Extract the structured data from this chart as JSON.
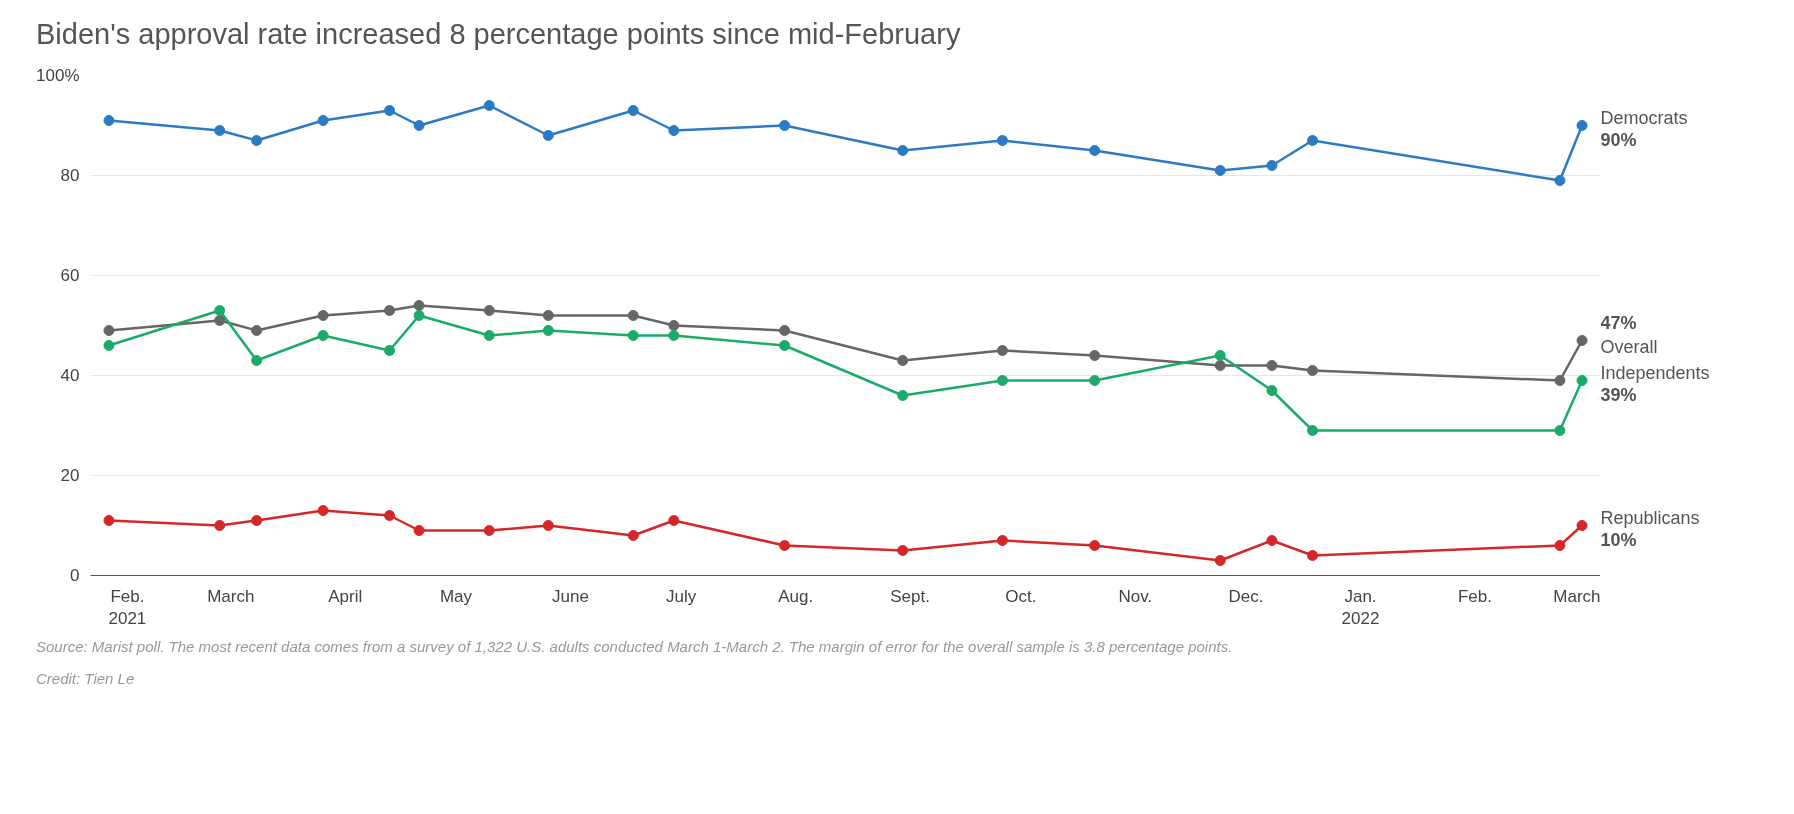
{
  "chart_data": {
    "type": "line",
    "title": "Biden's approval rate increased 8 percentage points since mid-February",
    "x": [
      "2021-01-27",
      "2021-02-26",
      "2021-03-08",
      "2021-03-26",
      "2021-04-13",
      "2021-04-21",
      "2021-05-10",
      "2021-05-26",
      "2021-06-18",
      "2021-06-29",
      "2021-07-29",
      "2021-08-30",
      "2021-09-26",
      "2021-10-21",
      "2021-11-24",
      "2021-12-08",
      "2021-12-19",
      "2022-02-24",
      "2022-03-02"
    ],
    "series": [
      {
        "name": "Democrats",
        "color": "#2a7bc3",
        "values": [
          91,
          89,
          87,
          91,
          93,
          90,
          94,
          88,
          93,
          89,
          90,
          85,
          87,
          85,
          81,
          82,
          87,
          79,
          90
        ],
        "value_labels": [
          null,
          null,
          null,
          null,
          null,
          null,
          null,
          null,
          null,
          null,
          null,
          null,
          null,
          null,
          null,
          null,
          null,
          null,
          "90%"
        ]
      },
      {
        "name": "Overall",
        "color": "#666666",
        "values": [
          49,
          51,
          49,
          52,
          53,
          54,
          53,
          52,
          52,
          50,
          49,
          43,
          45,
          44,
          42,
          42,
          41,
          39,
          47
        ],
        "value_labels": [
          null,
          null,
          null,
          null,
          null,
          null,
          null,
          null,
          null,
          null,
          null,
          null,
          null,
          null,
          null,
          null,
          null,
          null,
          "47%"
        ]
      },
      {
        "name": "Independents",
        "color": "#1aab6b",
        "values": [
          46,
          53,
          43,
          48,
          45,
          52,
          48,
          49,
          48,
          48,
          46,
          36,
          39,
          39,
          44,
          37,
          29,
          29,
          39
        ],
        "value_labels": [
          null,
          null,
          null,
          null,
          null,
          null,
          null,
          null,
          null,
          null,
          null,
          null,
          null,
          null,
          null,
          null,
          null,
          null,
          "39%"
        ]
      },
      {
        "name": "Republicans",
        "color": "#d62728",
        "values": [
          11,
          10,
          11,
          13,
          12,
          9,
          9,
          10,
          8,
          11,
          6,
          5,
          7,
          6,
          3,
          7,
          4,
          6,
          10
        ],
        "value_labels": [
          null,
          null,
          null,
          null,
          null,
          null,
          null,
          null,
          null,
          null,
          null,
          null,
          null,
          null,
          null,
          null,
          null,
          null,
          "10%"
        ]
      }
    ],
    "xlim": [
      "2021-01-22",
      "2022-03-07"
    ],
    "xticks": [
      {
        "value": "2021-02-01",
        "label": "Feb.\n2021"
      },
      {
        "value": "2021-03-01",
        "label": "March"
      },
      {
        "value": "2021-04-01",
        "label": "April"
      },
      {
        "value": "2021-05-01",
        "label": "May"
      },
      {
        "value": "2021-06-01",
        "label": "June"
      },
      {
        "value": "2021-07-01",
        "label": "July"
      },
      {
        "value": "2021-08-01",
        "label": "Aug."
      },
      {
        "value": "2021-09-01",
        "label": "Sept."
      },
      {
        "value": "2021-10-01",
        "label": "Oct."
      },
      {
        "value": "2021-11-01",
        "label": "Nov."
      },
      {
        "value": "2021-12-01",
        "label": "Dec."
      },
      {
        "value": "2022-01-01",
        "label": "Jan.\n2022"
      },
      {
        "value": "2022-02-01",
        "label": "Feb."
      },
      {
        "value": "2022-03-01",
        "label": "March"
      }
    ],
    "ylim": [
      0,
      100
    ],
    "yticks": [
      0,
      20,
      40,
      60,
      80,
      {
        "value": 100,
        "label": "100%"
      }
    ],
    "grid": "y",
    "marker": "circle",
    "line_style": "solid",
    "annotations": [
      "Source: Marist poll. The most recent data comes from a survey of 1,322 U.S. adults conducted March 1-March 2. The margin of error for the overall sample is 3.8 percentage points.",
      "Credit: Tien Le"
    ]
  }
}
